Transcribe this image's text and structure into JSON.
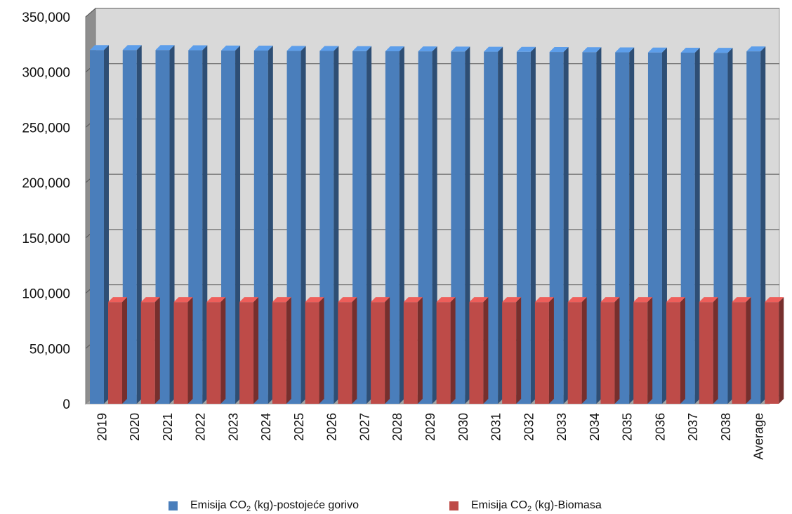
{
  "chart_data": {
    "type": "bar",
    "categories": [
      "2019",
      "2020",
      "2021",
      "2022",
      "2023",
      "2024",
      "2025",
      "2026",
      "2027",
      "2028",
      "2029",
      "2030",
      "2031",
      "2032",
      "2033",
      "2034",
      "2035",
      "2036",
      "2037",
      "2038",
      "Average"
    ],
    "series": [
      {
        "name": "Emisija CO2 (kg)-postojeće gorivo",
        "color": "#4A7EBB",
        "values": [
          320000,
          320000,
          320000,
          319800,
          319600,
          319500,
          319300,
          319200,
          319000,
          318900,
          318800,
          318600,
          318500,
          318400,
          318200,
          318100,
          317900,
          317800,
          317600,
          317500,
          318800
        ]
      },
      {
        "name": "Emisija CO2 (kg)-Biomasa",
        "color": "#BE4B48",
        "values": [
          92000,
          92000,
          92000,
          92000,
          92000,
          92000,
          92000,
          92000,
          92000,
          92000,
          92000,
          92000,
          92000,
          92000,
          92000,
          92000,
          92000,
          92000,
          92000,
          92000,
          92000
        ]
      }
    ],
    "ylim": [
      0,
      350000
    ],
    "yticks": [
      "0",
      "50,000",
      "100,000",
      "150,000",
      "200,000",
      "250,000",
      "300,000",
      "350,000"
    ],
    "grid": true,
    "legend_position": "bottom"
  },
  "legend": {
    "items": [
      {
        "prefix": "Emisija CO",
        "sub": "2",
        "suffix": " (kg)-postojeće gorivo"
      },
      {
        "prefix": "Emisija CO",
        "sub": "2",
        "suffix": " (kg)-Biomasa"
      }
    ]
  }
}
